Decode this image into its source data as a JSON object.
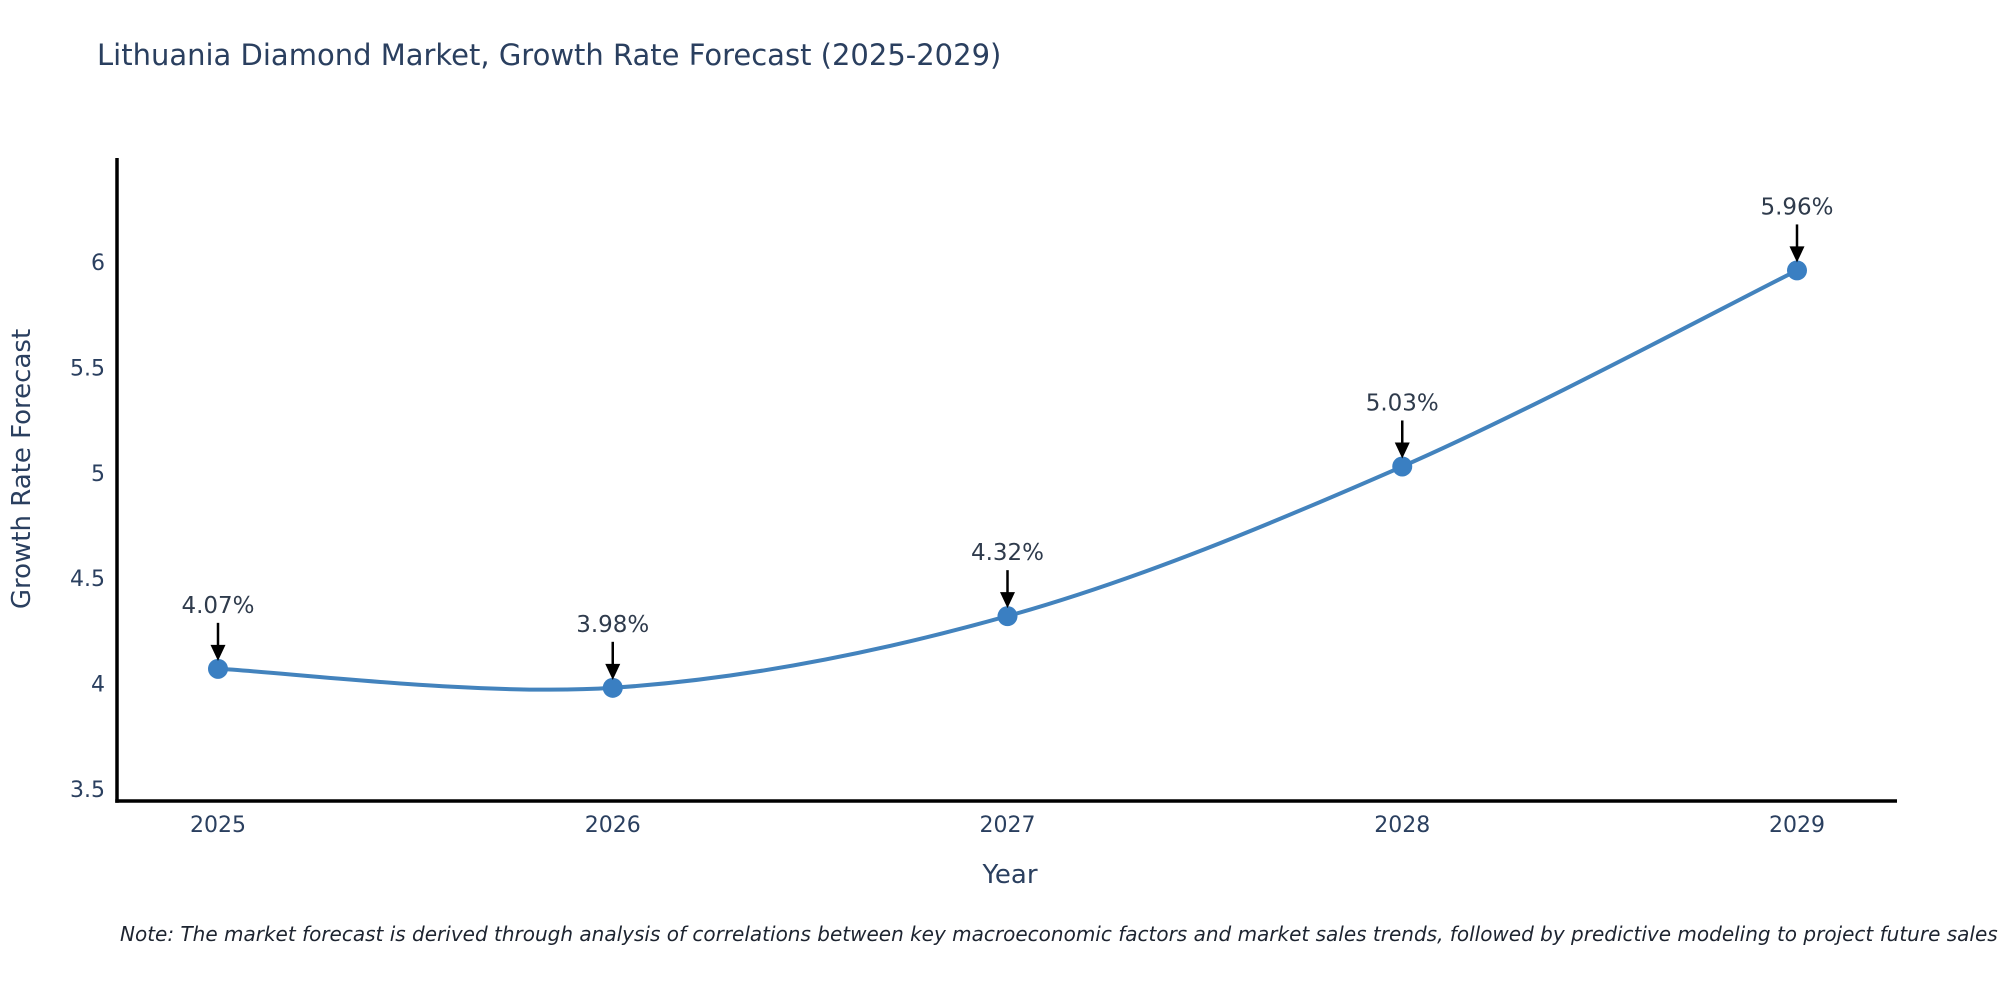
{
  "note": {
    "text": "Note: The market forecast is derived through analysis of correlations between key macroeconomic factors and market sales trends, followed by predictive modeling to project future sales"
  },
  "chart_data": {
    "type": "line",
    "line_shape": "spline",
    "title": "Lithuania Diamond Market, Growth Rate Forecast (2025-2029)",
    "xlabel": "Year",
    "ylabel": "Growth Rate Forecast",
    "x": [
      "2025",
      "2026",
      "2027",
      "2028",
      "2029"
    ],
    "series": [
      {
        "name": "Growth Rate Forecast",
        "values": [
          4.07,
          3.98,
          4.32,
          5.03,
          5.96
        ]
      }
    ],
    "point_labels": [
      "4.07%",
      "3.98%",
      "4.32%",
      "5.03%",
      "5.96%"
    ],
    "yticks": [
      3.5,
      4,
      4.5,
      5,
      5.5,
      6
    ],
    "ylim": [
      3.44,
      6.48
    ],
    "grid": false,
    "legend": "none",
    "colors": {
      "line": "#4383bd",
      "marker": "#3a7fc2",
      "axis_line": "#000000",
      "tick_text": "#2a3f5f",
      "annotation_text": "#2f3b4c",
      "arrow": "#000000",
      "title_text": "#2a3f5f",
      "background": "#ffffff"
    }
  }
}
